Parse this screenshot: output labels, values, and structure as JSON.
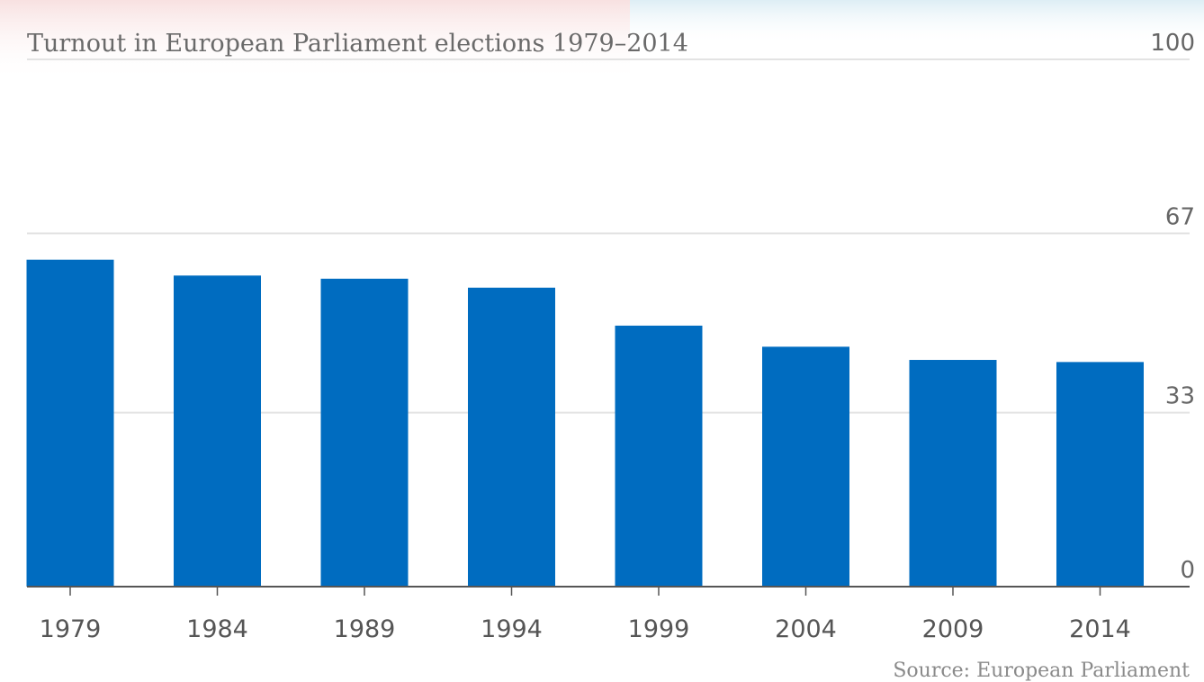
{
  "chart_data": {
    "type": "bar",
    "title": "Turnout in European Parliament elections 1979–2014",
    "categories": [
      "1979",
      "1984",
      "1989",
      "1994",
      "1999",
      "2004",
      "2009",
      "2014"
    ],
    "values": [
      62.0,
      59.0,
      58.4,
      56.7,
      49.5,
      45.5,
      43.0,
      42.6
    ],
    "ylim": [
      0,
      100
    ],
    "yticks": [
      0,
      33,
      67,
      100
    ],
    "xlabel": "",
    "ylabel": "",
    "grid": true,
    "source": "Source: European Parliament",
    "colors": {
      "bar": "#006cc0",
      "grid": "#e3e3e3",
      "axis": "#555555"
    }
  }
}
